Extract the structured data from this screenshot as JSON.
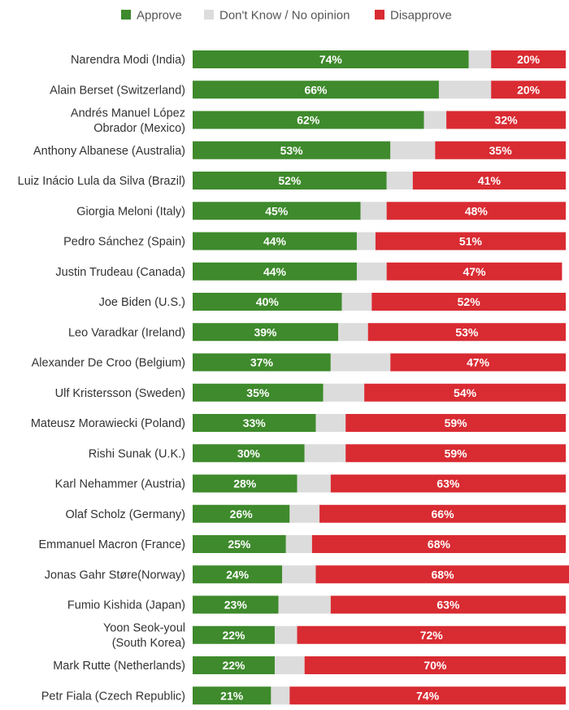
{
  "chart_data": {
    "type": "bar",
    "orientation": "horizontal",
    "stacked": true,
    "xlim": [
      0,
      100
    ],
    "grid": false,
    "legend_position": "top",
    "series": [
      {
        "name": "Approve",
        "color": "#3e8a2c",
        "values": [
          74,
          66,
          62,
          53,
          52,
          45,
          44,
          44,
          40,
          39,
          37,
          35,
          33,
          30,
          28,
          26,
          25,
          24,
          23,
          22,
          22,
          21
        ]
      },
      {
        "name": "Don't Know / No opinion",
        "color": "#dcdcdc",
        "values": [
          6,
          14,
          6,
          12,
          7,
          7,
          5,
          8,
          8,
          8,
          16,
          11,
          8,
          11,
          9,
          8,
          7,
          9,
          14,
          6,
          8,
          5
        ]
      },
      {
        "name": "Disapprove",
        "color": "#d92b32",
        "values": [
          20,
          20,
          32,
          35,
          41,
          48,
          51,
          47,
          52,
          53,
          47,
          54,
          59,
          59,
          63,
          66,
          68,
          68,
          63,
          72,
          70,
          74
        ]
      }
    ],
    "categories": [
      [
        "Narendra Modi (India)"
      ],
      [
        "Alain Berset (Switzerland)"
      ],
      [
        "Andrés Manuel López",
        "Obrador (Mexico)"
      ],
      [
        "Anthony Albanese (Australia)"
      ],
      [
        "Luiz Inácio Lula da Silva (Brazil)"
      ],
      [
        "Giorgia Meloni (Italy)"
      ],
      [
        "Pedro Sánchez (Spain)"
      ],
      [
        "Justin Trudeau (Canada)"
      ],
      [
        "Joe Biden (U.S.)"
      ],
      [
        "Leo Varadkar (Ireland)"
      ],
      [
        "Alexander De Croo (Belgium)"
      ],
      [
        "Ulf Kristersson (Sweden)"
      ],
      [
        "Mateusz Morawiecki (Poland)"
      ],
      [
        "Rishi Sunak (U.K.)"
      ],
      [
        "Karl Nehammer (Austria)"
      ],
      [
        "Olaf Scholz (Germany)"
      ],
      [
        "Emmanuel Macron (France)"
      ],
      [
        "Jonas Gahr Støre(Norway)"
      ],
      [
        "Fumio Kishida (Japan)"
      ],
      [
        "Yoon Seok-youl",
        "(South Korea)"
      ],
      [
        "Mark Rutte (Netherlands)"
      ],
      [
        "Petr Fiala (Czech Republic)"
      ]
    ],
    "data_labels": {
      "Approve": [
        "74%",
        "66%",
        "62%",
        "53%",
        "52%",
        "45%",
        "44%",
        "44%",
        "40%",
        "39%",
        "37%",
        "35%",
        "33%",
        "30%",
        "28%",
        "26%",
        "25%",
        "24%",
        "23%",
        "22%",
        "22%",
        "21%"
      ],
      "Disapprove": [
        "20%",
        "20%",
        "32%",
        "35%",
        "41%",
        "48%",
        "51%",
        "47%",
        "52%",
        "53%",
        "47%",
        "54%",
        "59%",
        "59%",
        "63%",
        "66%",
        "68%",
        "68%",
        "63%",
        "72%",
        "70%",
        "74%"
      ]
    }
  }
}
